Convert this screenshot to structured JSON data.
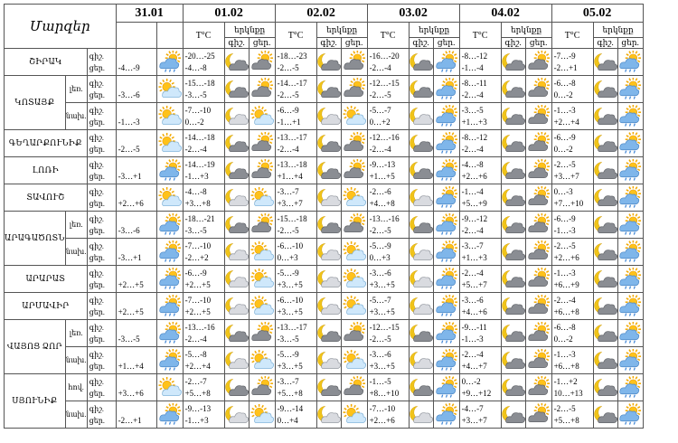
{
  "header": {
    "region_title": "Մարզեր",
    "t_label": "T°C",
    "sky_label": "երկնքը",
    "night_label": "գիշ.",
    "day_label": "ցեր.",
    "dates": [
      "31.01",
      "01.02",
      "02.02",
      "03.02",
      "04.02",
      "05.02"
    ]
  },
  "icon_names": {
    "sun_cloud": "sun-behind-cloud-icon",
    "moon_cloud": "moon-behind-cloud-icon",
    "cloud_sun_rain": "cloud-sun-rain-icon",
    "cloud_sun": "dark-cloud-sun-icon",
    "cloud_moon": "dark-cloud-moon-icon"
  },
  "rows": [
    {
      "region": "ՇԻՐԱԿ",
      "sub": "",
      "l1": "գիշ.",
      "l2": "ցեր.",
      "first": {
        "t2": "-4…-9",
        "icon": "cloud_sun_rain"
      },
      "days": [
        {
          "t1": "-20…-25",
          "t2": "-4…-8",
          "n": "cloud_moon",
          "d": "cloud_sun"
        },
        {
          "t1": "-18…-23",
          "t2": "-2…-5",
          "n": "cloud_moon",
          "d": "cloud_sun"
        },
        {
          "t1": "-16…-20",
          "t2": "-2…-4",
          "n": "cloud_moon",
          "d": "cloud_sun_rain"
        },
        {
          "t1": "-8…-12",
          "t2": "-1…-4",
          "n": "cloud_moon",
          "d": "cloud_sun"
        },
        {
          "t1": "-7…-9",
          "t2": "-2…+1",
          "n": "cloud_moon",
          "d": "cloud_sun_rain"
        }
      ]
    },
    {
      "region": "ԿՈՏԱՅՔ",
      "sub": "լեռ.",
      "l1": "գիշ.",
      "l2": "ցեր.",
      "first": {
        "t2": "-3…-6",
        "icon": "sun_cloud"
      },
      "days": [
        {
          "t1": "-15…-18",
          "t2": "-3…-5",
          "n": "cloud_moon",
          "d": "cloud_sun"
        },
        {
          "t1": "-14…-17",
          "t2": "-2…-5",
          "n": "cloud_moon",
          "d": "cloud_sun"
        },
        {
          "t1": "-12…-15",
          "t2": "-2…-5",
          "n": "cloud_moon",
          "d": "cloud_sun_rain"
        },
        {
          "t1": "-8…-11",
          "t2": "-2…-4",
          "n": "cloud_moon",
          "d": "cloud_sun"
        },
        {
          "t1": "-6…-8",
          "t2": "0…-2",
          "n": "cloud_moon",
          "d": "cloud_sun_rain"
        }
      ]
    },
    {
      "region": "",
      "sub": "նախ.",
      "l1": "գիշ.",
      "l2": "ցեր.",
      "first": {
        "t2": "-1…-3",
        "icon": "sun_cloud"
      },
      "days": [
        {
          "t1": "-7…-10",
          "t2": "0…-2",
          "n": "moon_cloud",
          "d": "sun_cloud"
        },
        {
          "t1": "-6…-9",
          "t2": "-1…+1",
          "n": "moon_cloud",
          "d": "sun_cloud"
        },
        {
          "t1": "-5…-7",
          "t2": "0…+2",
          "n": "moon_cloud",
          "d": "cloud_sun_rain"
        },
        {
          "t1": "-3…-5",
          "t2": "+1…+3",
          "n": "cloud_moon",
          "d": "cloud_sun"
        },
        {
          "t1": "-1…-3",
          "t2": "+2…+4",
          "n": "cloud_moon",
          "d": "cloud_sun_rain"
        }
      ]
    },
    {
      "region": "ԳԵՂԱՐՔՈՒՆԻՔ",
      "sub": "",
      "l1": "գիշ.",
      "l2": "ցեր.",
      "first": {
        "t2": "-2…-5",
        "icon": "sun_cloud"
      },
      "days": [
        {
          "t1": "-14…-18",
          "t2": "-2…-4",
          "n": "cloud_moon",
          "d": "cloud_sun"
        },
        {
          "t1": "-13…-17",
          "t2": "-2…-4",
          "n": "cloud_moon",
          "d": "cloud_sun"
        },
        {
          "t1": "-12…-16",
          "t2": "-2…-4",
          "n": "cloud_moon",
          "d": "cloud_sun_rain"
        },
        {
          "t1": "-8…-12",
          "t2": "-2…-4",
          "n": "cloud_moon",
          "d": "cloud_sun"
        },
        {
          "t1": "-6…-9",
          "t2": "0…-2",
          "n": "cloud_moon",
          "d": "cloud_sun_rain"
        }
      ]
    },
    {
      "region": "ԼՈՌԻ",
      "sub": "",
      "l1": "գիշ.",
      "l2": "ցեր.",
      "first": {
        "t2": "-3…+1",
        "icon": "cloud_sun_rain"
      },
      "days": [
        {
          "t1": "-14…-19",
          "t2": "-1…+3",
          "n": "cloud_moon",
          "d": "cloud_sun"
        },
        {
          "t1": "-13…-18",
          "t2": "+1…+4",
          "n": "cloud_moon",
          "d": "cloud_sun"
        },
        {
          "t1": "-9…-13",
          "t2": "+1…+5",
          "n": "cloud_moon",
          "d": "cloud_sun_rain"
        },
        {
          "t1": "-4…-8",
          "t2": "+2…+6",
          "n": "cloud_moon",
          "d": "cloud_sun"
        },
        {
          "t1": "-2…-5",
          "t2": "+3…+7",
          "n": "cloud_moon",
          "d": "cloud_sun_rain"
        }
      ]
    },
    {
      "region": "ՏԱՎՈՒՇ",
      "sub": "",
      "l1": "գիշ.",
      "l2": "ցեր.",
      "first": {
        "t2": "+2…+6",
        "icon": "sun_cloud"
      },
      "days": [
        {
          "t1": "-4…-8",
          "t2": "+3…+8",
          "n": "moon_cloud",
          "d": "sun_cloud"
        },
        {
          "t1": "-3…-7",
          "t2": "+3…+7",
          "n": "moon_cloud",
          "d": "sun_cloud"
        },
        {
          "t1": "-2…-6",
          "t2": "+4…+8",
          "n": "moon_cloud",
          "d": "cloud_sun_rain"
        },
        {
          "t1": "-1…-4",
          "t2": "+5…+9",
          "n": "cloud_moon",
          "d": "cloud_sun"
        },
        {
          "t1": "0…-3",
          "t2": "+7…+10",
          "n": "cloud_moon",
          "d": "cloud_sun_rain"
        }
      ]
    },
    {
      "region": "ԱՐԱԳԱԾՈՏՆ",
      "sub": "լեռ.",
      "l1": "գիշ.",
      "l2": "ցեր.",
      "first": {
        "t2": "-3…-6",
        "icon": "cloud_sun_rain"
      },
      "days": [
        {
          "t1": "-18…-21",
          "t2": "-3…-5",
          "n": "cloud_moon",
          "d": "cloud_sun"
        },
        {
          "t1": "-15…-18",
          "t2": "-2…-5",
          "n": "cloud_moon",
          "d": "cloud_sun"
        },
        {
          "t1": "-13…-16",
          "t2": "-2…-5",
          "n": "cloud_moon",
          "d": "cloud_sun_rain"
        },
        {
          "t1": "-9…-12",
          "t2": "-2…-4",
          "n": "cloud_moon",
          "d": "cloud_sun"
        },
        {
          "t1": "-6…-9",
          "t2": "-1…-3",
          "n": "cloud_moon",
          "d": "cloud_sun_rain"
        }
      ]
    },
    {
      "region": "",
      "sub": "նախ.",
      "l1": "գիշ.",
      "l2": "ցեր.",
      "first": {
        "t2": "-3…+1",
        "icon": "cloud_sun_rain"
      },
      "days": [
        {
          "t1": "-7…-10",
          "t2": "-2…+2",
          "n": "moon_cloud",
          "d": "sun_cloud"
        },
        {
          "t1": "-6…-10",
          "t2": "0…+3",
          "n": "moon_cloud",
          "d": "sun_cloud"
        },
        {
          "t1": "-5…-9",
          "t2": "0…+3",
          "n": "moon_cloud",
          "d": "cloud_sun_rain"
        },
        {
          "t1": "-3…-7",
          "t2": "+1…+3",
          "n": "cloud_moon",
          "d": "cloud_sun"
        },
        {
          "t1": "-2…-5",
          "t2": "+2…+6",
          "n": "cloud_moon",
          "d": "cloud_sun_rain"
        }
      ]
    },
    {
      "region": "ԱՐԱՐԱՏ",
      "sub": "",
      "l1": "գիշ.",
      "l2": "ցեր.",
      "first": {
        "t2": "+2…+5",
        "icon": "cloud_sun_rain"
      },
      "days": [
        {
          "t1": "-6…-9",
          "t2": "+2…+5",
          "n": "moon_cloud",
          "d": "sun_cloud"
        },
        {
          "t1": "-5…-9",
          "t2": "+3…+5",
          "n": "moon_cloud",
          "d": "sun_cloud"
        },
        {
          "t1": "-3…-6",
          "t2": "+3…+5",
          "n": "moon_cloud",
          "d": "cloud_sun_rain"
        },
        {
          "t1": "-2…-4",
          "t2": "+5…+7",
          "n": "cloud_moon",
          "d": "cloud_sun"
        },
        {
          "t1": "-1…-3",
          "t2": "+6…+9",
          "n": "cloud_moon",
          "d": "cloud_sun_rain"
        }
      ]
    },
    {
      "region": "ԱՐՄԱՎԻՐ",
      "sub": "",
      "l1": "գիշ.",
      "l2": "ցեր.",
      "first": {
        "t2": "+2…+5",
        "icon": "cloud_sun_rain"
      },
      "days": [
        {
          "t1": "-7…-10",
          "t2": "+2…+5",
          "n": "moon_cloud",
          "d": "sun_cloud"
        },
        {
          "t1": "-6…-10",
          "t2": "+3…+5",
          "n": "moon_cloud",
          "d": "sun_cloud"
        },
        {
          "t1": "-5…-7",
          "t2": "+3…+5",
          "n": "moon_cloud",
          "d": "cloud_sun_rain"
        },
        {
          "t1": "-3…-6",
          "t2": "+4…+6",
          "n": "cloud_moon",
          "d": "cloud_sun"
        },
        {
          "t1": "-2…-4",
          "t2": "+6…+8",
          "n": "cloud_moon",
          "d": "cloud_sun_rain"
        }
      ]
    },
    {
      "region": "ՎԱՅՈՑ ՁՈՐ",
      "sub": "լեռ.",
      "l1": "գիշ.",
      "l2": "ցեր.",
      "first": {
        "t2": "-3…-5",
        "icon": "cloud_sun_rain"
      },
      "days": [
        {
          "t1": "-13…-16",
          "t2": "-2…-4",
          "n": "cloud_moon",
          "d": "cloud_sun"
        },
        {
          "t1": "-13…-17",
          "t2": "-3…-5",
          "n": "cloud_moon",
          "d": "cloud_sun"
        },
        {
          "t1": "-12…-15",
          "t2": "-2…-5",
          "n": "cloud_moon",
          "d": "cloud_sun_rain"
        },
        {
          "t1": "-9…-11",
          "t2": "-1…-3",
          "n": "cloud_moon",
          "d": "cloud_sun"
        },
        {
          "t1": "-6…-8",
          "t2": "0…-2",
          "n": "cloud_moon",
          "d": "cloud_sun_rain"
        }
      ]
    },
    {
      "region": "",
      "sub": "նախ.",
      "l1": "գիշ.",
      "l2": "ցեր.",
      "first": {
        "t2": "+1…+4",
        "icon": "cloud_sun_rain"
      },
      "days": [
        {
          "t1": "-5…-8",
          "t2": "+2…+4",
          "n": "moon_cloud",
          "d": "sun_cloud"
        },
        {
          "t1": "-5…-9",
          "t2": "+3…+5",
          "n": "moon_cloud",
          "d": "sun_cloud"
        },
        {
          "t1": "-3…-6",
          "t2": "+3…+5",
          "n": "moon_cloud",
          "d": "cloud_sun_rain"
        },
        {
          "t1": "-2…-4",
          "t2": "+4…+7",
          "n": "cloud_moon",
          "d": "cloud_sun"
        },
        {
          "t1": "-1…-3",
          "t2": "+6…+8",
          "n": "cloud_moon",
          "d": "cloud_sun_rain"
        }
      ]
    },
    {
      "region": "ՍՅՈՒՆԻՔ",
      "sub": "հով.",
      "l1": "գիշ.",
      "l2": "ցեր.",
      "first": {
        "t2": "+3…+6",
        "icon": "sun_cloud"
      },
      "days": [
        {
          "t1": "-2…-7",
          "t2": "+5…+8",
          "n": "cloud_moon",
          "d": "cloud_sun"
        },
        {
          "t1": "-3…-7",
          "t2": "+5…+8",
          "n": "cloud_moon",
          "d": "cloud_sun"
        },
        {
          "t1": "-1…-5",
          "t2": "+8…+10",
          "n": "cloud_moon",
          "d": "cloud_sun_rain"
        },
        {
          "t1": "0…-2",
          "t2": "+9…+12",
          "n": "cloud_moon",
          "d": "cloud_sun"
        },
        {
          "t1": "-1…+2",
          "t2": "10…+13",
          "n": "cloud_moon",
          "d": "cloud_sun_rain"
        }
      ]
    },
    {
      "region": "",
      "sub": "նախ.",
      "l1": "գիշ.",
      "l2": "ցեր.",
      "first": {
        "t2": "-2…+1",
        "icon": "cloud_sun_rain"
      },
      "days": [
        {
          "t1": "-9…-13",
          "t2": "-1…+3",
          "n": "moon_cloud",
          "d": "sun_cloud"
        },
        {
          "t1": "-9…-14",
          "t2": "0…+4",
          "n": "moon_cloud",
          "d": "sun_cloud"
        },
        {
          "t1": "-7…-10",
          "t2": "+2…+6",
          "n": "moon_cloud",
          "d": "cloud_sun_rain"
        },
        {
          "t1": "-4…-7",
          "t2": "+3…+7",
          "n": "cloud_moon",
          "d": "cloud_sun"
        },
        {
          "t1": "-2…-5",
          "t2": "+5…+8",
          "n": "cloud_moon",
          "d": "cloud_sun_rain"
        }
      ]
    }
  ]
}
